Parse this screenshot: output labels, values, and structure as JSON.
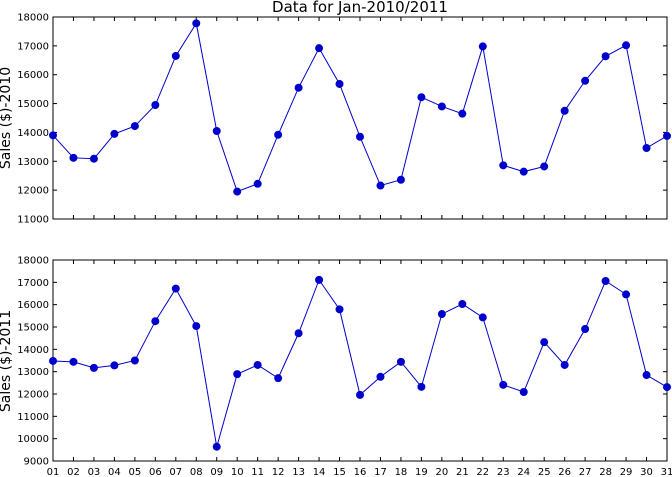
{
  "chart_data": [
    {
      "type": "line",
      "title": "Data for Jan-2010/2011",
      "xlabel": "",
      "ylabel": "Sales ($)-2010",
      "ylim": [
        11000,
        18000
      ],
      "yticks": [
        11000,
        12000,
        13000,
        14000,
        15000,
        16000,
        17000,
        18000
      ],
      "grid": false,
      "x": [
        "01",
        "02",
        "03",
        "04",
        "05",
        "06",
        "07",
        "08",
        "09",
        "10",
        "11",
        "12",
        "13",
        "14",
        "15",
        "16",
        "17",
        "18",
        "19",
        "20",
        "21",
        "22",
        "23",
        "24",
        "25",
        "26",
        "27",
        "28",
        "29",
        "30",
        "31"
      ],
      "series": [
        {
          "color": "#0000cc",
          "values": [
            13900,
            13120,
            13090,
            13950,
            14220,
            14950,
            16650,
            17780,
            14050,
            11950,
            12220,
            13920,
            15550,
            16920,
            15680,
            13850,
            12160,
            12360,
            15220,
            14900,
            14650,
            16980,
            12860,
            12640,
            12820,
            14750,
            15790,
            16640,
            17020,
            13460,
            13880
          ]
        }
      ]
    },
    {
      "type": "line",
      "title": "",
      "xlabel": "",
      "ylabel": "Sales ($)-2011",
      "ylim": [
        9000,
        18000
      ],
      "yticks": [
        9000,
        10000,
        11000,
        12000,
        13000,
        14000,
        15000,
        16000,
        17000,
        18000
      ],
      "grid": false,
      "x": [
        "01",
        "02",
        "03",
        "04",
        "05",
        "06",
        "07",
        "08",
        "09",
        "10",
        "11",
        "12",
        "13",
        "14",
        "15",
        "16",
        "17",
        "18",
        "19",
        "20",
        "21",
        "22",
        "23",
        "24",
        "25",
        "26",
        "27",
        "28",
        "29",
        "30",
        "31"
      ],
      "series": [
        {
          "color": "#0000cc",
          "values": [
            13480,
            13440,
            13170,
            13280,
            13500,
            15260,
            16720,
            15040,
            9640,
            12890,
            13300,
            12710,
            14720,
            17110,
            15790,
            11960,
            12770,
            13440,
            12320,
            15580,
            16030,
            15430,
            12410,
            12090,
            14320,
            13300,
            14910,
            17060,
            16460,
            12850,
            12310
          ]
        }
      ]
    }
  ]
}
